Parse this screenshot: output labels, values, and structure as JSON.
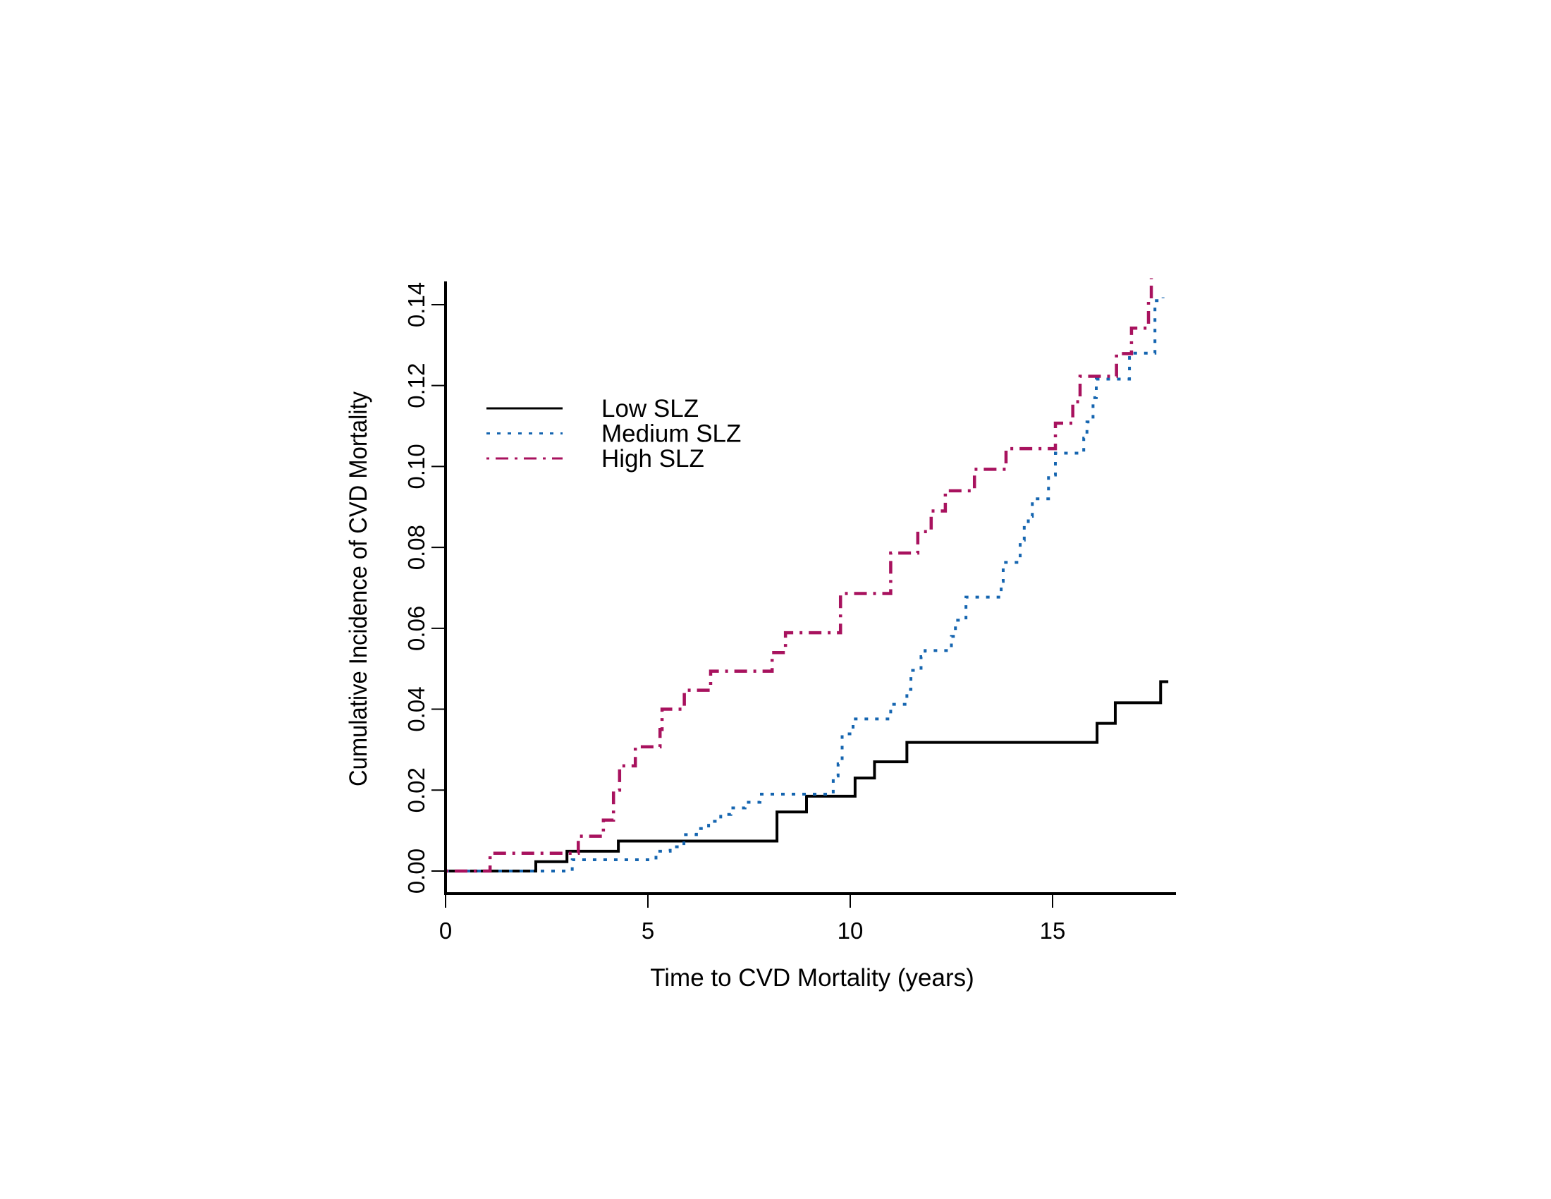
{
  "chart_data": {
    "type": "line",
    "subtype": "step",
    "title": "",
    "xlabel": "Time to CVD Mortality (years)",
    "ylabel": "Cumulative Incidence of CVD Mortality",
    "xlim": [
      0,
      18
    ],
    "ylim": [
      0,
      0.146
    ],
    "xticks": [
      0,
      5,
      10,
      15
    ],
    "xtick_labels": [
      "0",
      "5",
      "10",
      "15"
    ],
    "yticks": [
      0.0,
      0.02,
      0.04,
      0.06,
      0.08,
      0.1,
      0.12,
      0.14
    ],
    "ytick_labels": [
      "0.00",
      "0.02",
      "0.04",
      "0.06",
      "0.08",
      "0.10",
      "0.12",
      "0.14"
    ],
    "grid": false,
    "legend_position": "top-left",
    "series": [
      {
        "name": "Low SLZ",
        "color": "#000000",
        "linestyle": "solid",
        "x": [
          0,
          2.23,
          3.0,
          4.27,
          8.19,
          8.92,
          10.12,
          10.6,
          11.4,
          16.1,
          16.55,
          17.67,
          17.86
        ],
        "y": [
          0,
          0.0023,
          0.0049,
          0.0074,
          0.0146,
          0.0185,
          0.023,
          0.027,
          0.0318,
          0.0365,
          0.0416,
          0.0468,
          0.0468
        ]
      },
      {
        "name": "Medium SLZ",
        "color": "#1565b0",
        "linestyle": "dotted",
        "x": [
          0,
          3.13,
          5.2,
          5.55,
          5.89,
          6.2,
          6.5,
          6.8,
          7.05,
          7.4,
          7.77,
          9.58,
          9.7,
          9.8,
          10.07,
          11.0,
          11.4,
          11.5,
          11.75,
          11.85,
          12.5,
          12.6,
          12.86,
          13.73,
          13.78,
          14.2,
          14.3,
          14.4,
          14.5,
          14.9,
          15.07,
          15.77,
          15.85,
          16.0,
          16.08,
          16.9,
          17.53,
          17.73
        ],
        "y": [
          0,
          0.0028,
          0.0049,
          0.006,
          0.009,
          0.0105,
          0.0123,
          0.014,
          0.0156,
          0.017,
          0.019,
          0.0235,
          0.0265,
          0.0339,
          0.0376,
          0.0412,
          0.0449,
          0.0496,
          0.053,
          0.0545,
          0.058,
          0.062,
          0.0677,
          0.0716,
          0.0763,
          0.0818,
          0.086,
          0.0877,
          0.092,
          0.0979,
          0.1033,
          0.107,
          0.111,
          0.117,
          0.1216,
          0.128,
          0.141,
          0.1418
        ]
      },
      {
        "name": "High SLZ",
        "color": "#a8125e",
        "linestyle": "dashdot",
        "x": [
          0,
          1.1,
          3.28,
          3.9,
          4.15,
          4.3,
          4.69,
          5.3,
          5.35,
          5.9,
          6.55,
          8.07,
          8.4,
          9.76,
          11.0,
          11.67,
          12.0,
          12.35,
          13.07,
          13.85,
          15.07,
          15.5,
          15.68,
          16.58,
          16.95,
          17.37,
          17.44
        ],
        "y": [
          0,
          0.0044,
          0.0086,
          0.0126,
          0.02,
          0.026,
          0.0307,
          0.035,
          0.04,
          0.0447,
          0.0494,
          0.054,
          0.0589,
          0.0686,
          0.0786,
          0.0839,
          0.089,
          0.094,
          0.0993,
          0.1044,
          0.1107,
          0.116,
          0.1223,
          0.1279,
          0.1342,
          0.1407,
          0.1465
        ]
      }
    ]
  }
}
